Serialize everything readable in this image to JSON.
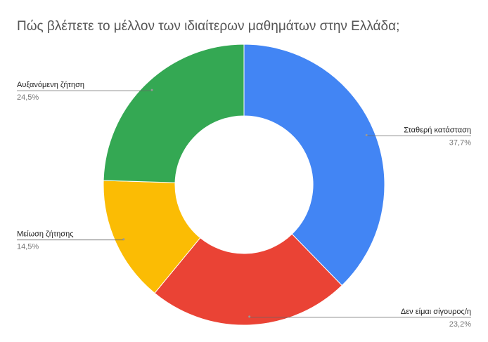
{
  "chart_data": {
    "type": "donut",
    "title": "Πώς βλέπετε το μέλλον των ιδιαίτερων μαθημάτων στην Ελλάδα;",
    "categories": [
      "Σταθερή κατάσταση",
      "Δεν είμαι σίγουρος/η",
      "Μείωση ζήτησης",
      "Αυξανόμενη ζήτηση"
    ],
    "values": [
      37.7,
      23.2,
      14.5,
      24.5
    ],
    "value_labels": [
      "37,7%",
      "23,2%",
      "14,5%",
      "24,5%"
    ],
    "colors": [
      "#4285f4",
      "#ea4335",
      "#fbbc04",
      "#34a853"
    ]
  }
}
